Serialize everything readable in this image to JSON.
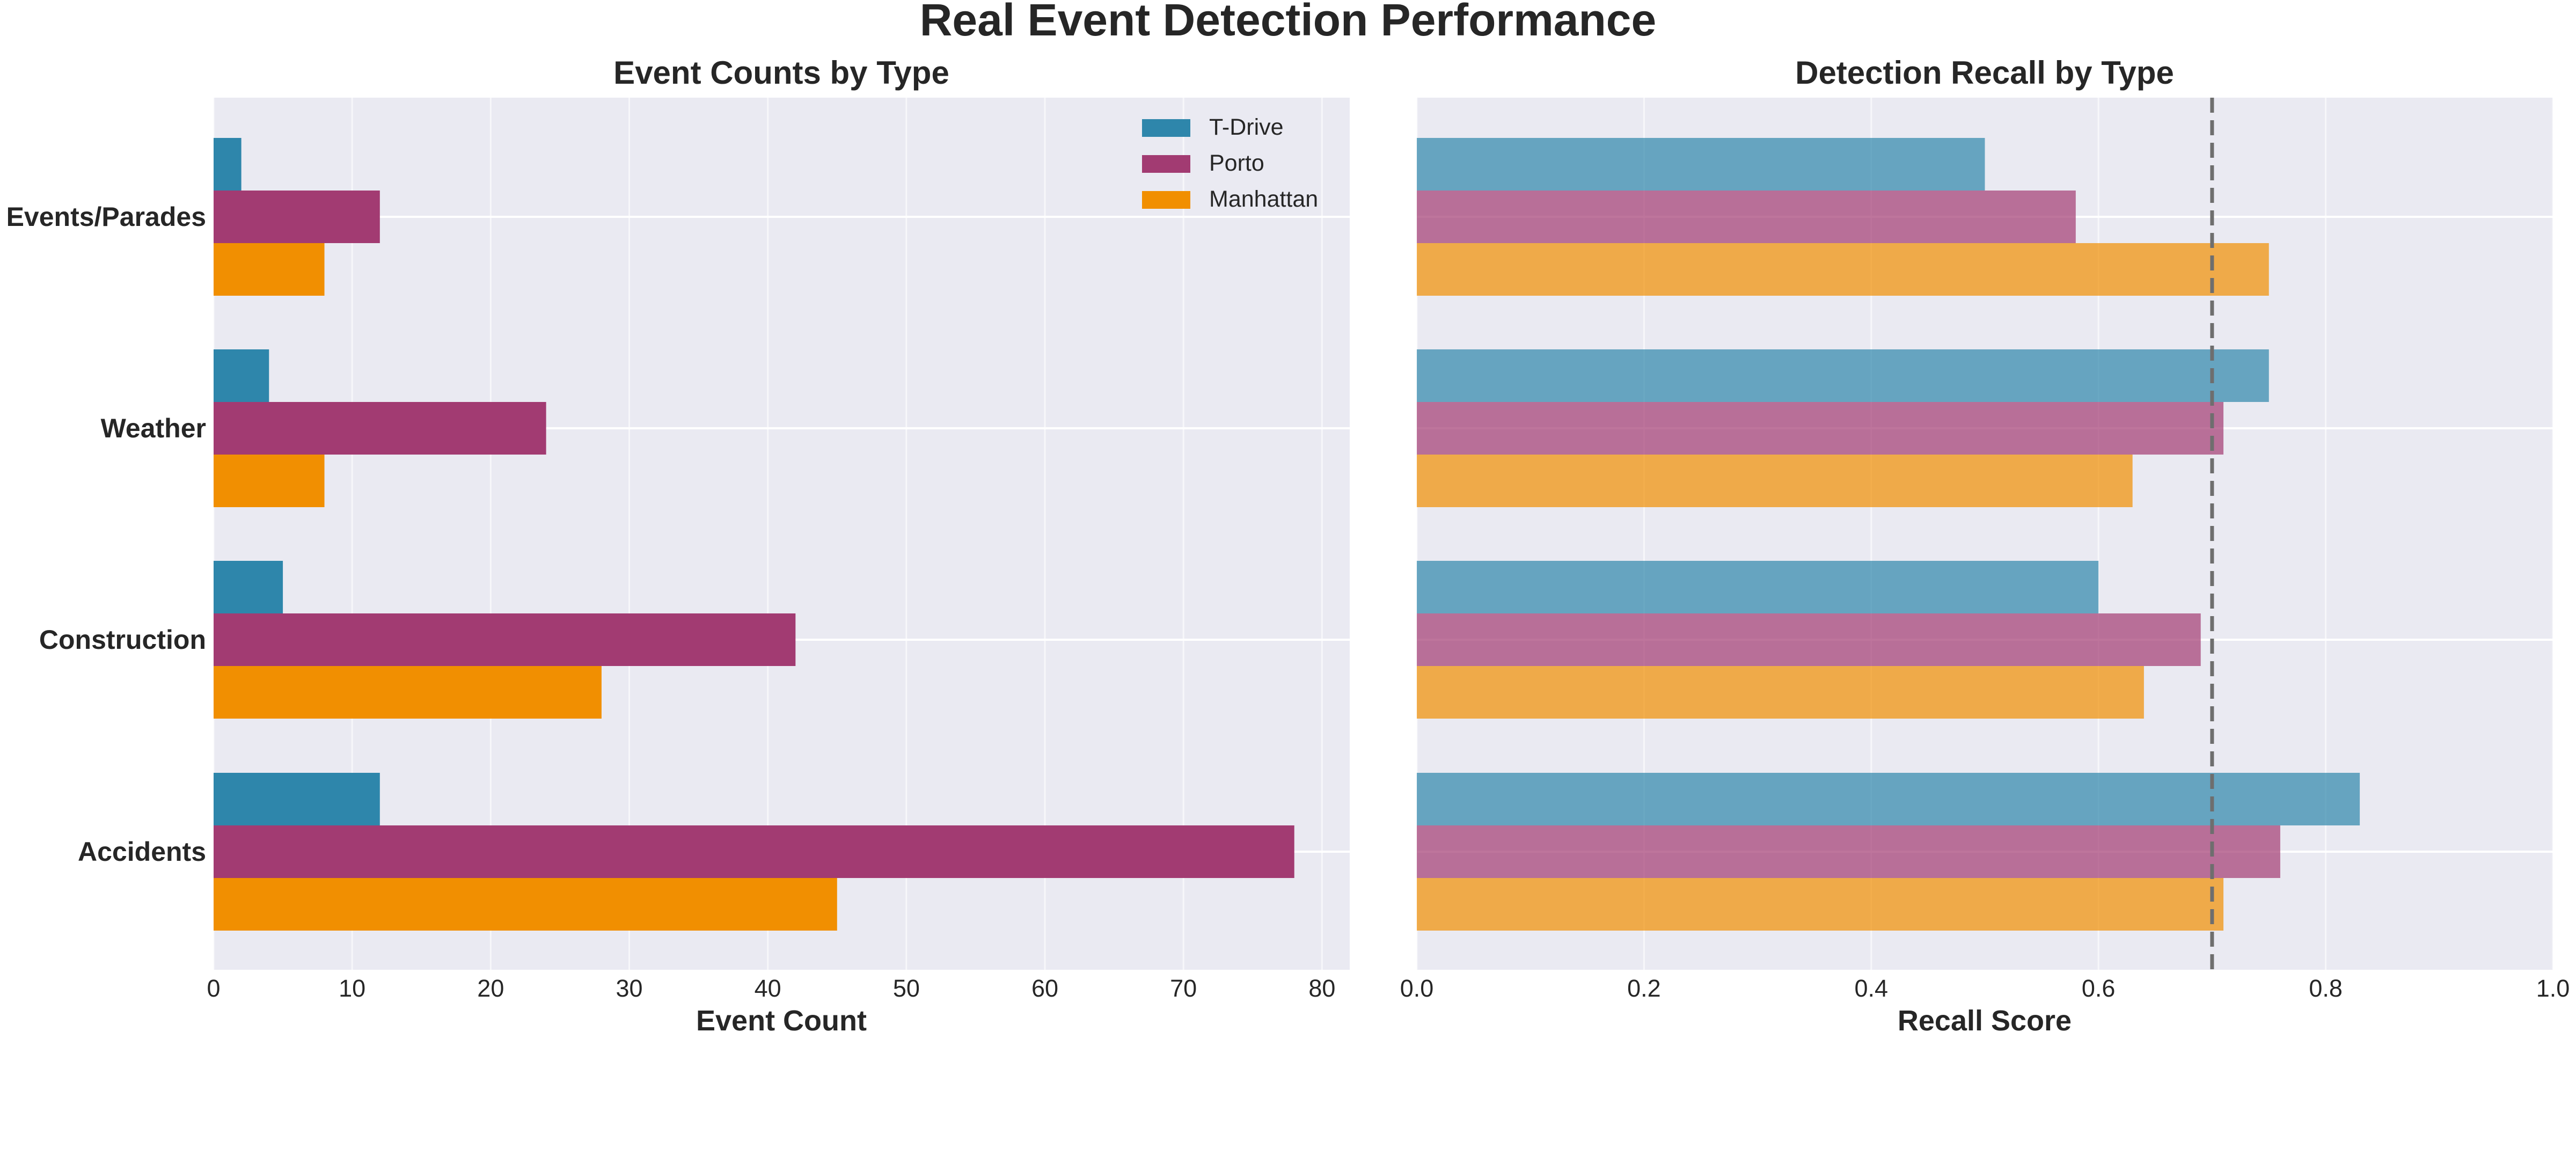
{
  "title": "Real Event Detection Performance",
  "chart_data": [
    {
      "type": "bar",
      "orientation": "horizontal",
      "title": "Event Counts by Type",
      "xlabel": "Event Count",
      "ylabel": "",
      "categories": [
        "Accidents",
        "Construction",
        "Weather",
        "Events/Parades"
      ],
      "xlim": [
        0,
        82
      ],
      "xticks": [
        "0",
        "10",
        "20",
        "30",
        "40",
        "50",
        "60",
        "70",
        "80"
      ],
      "legend": "top-right",
      "grid": true,
      "series": [
        {
          "name": "T-Drive",
          "color": "#2e86ab",
          "values": [
            12,
            5,
            4,
            2
          ]
        },
        {
          "name": "Porto",
          "color": "#a23b72",
          "values": [
            78,
            42,
            24,
            12
          ]
        },
        {
          "name": "Manhattan",
          "color": "#f18f01",
          "values": [
            45,
            28,
            8,
            8
          ]
        }
      ]
    },
    {
      "type": "bar",
      "orientation": "horizontal",
      "title": "Detection Recall by Type",
      "xlabel": "Recall Score",
      "ylabel": "",
      "categories": [
        "Accidents",
        "Construction",
        "Weather",
        "Events/Parades"
      ],
      "xlim": [
        0,
        1.0
      ],
      "xticks": [
        "0.0",
        "0.2",
        "0.4",
        "0.6",
        "0.8",
        "1.0"
      ],
      "reference_line": 0.7,
      "grid": true,
      "series": [
        {
          "name": "T-Drive",
          "color": "#2e86ab",
          "values": [
            0.83,
            0.6,
            0.75,
            0.5
          ]
        },
        {
          "name": "Porto",
          "color": "#a23b72",
          "values": [
            0.76,
            0.69,
            0.71,
            0.58
          ]
        },
        {
          "name": "Manhattan",
          "color": "#f18f01",
          "values": [
            0.71,
            0.64,
            0.63,
            0.75
          ]
        }
      ]
    }
  ]
}
